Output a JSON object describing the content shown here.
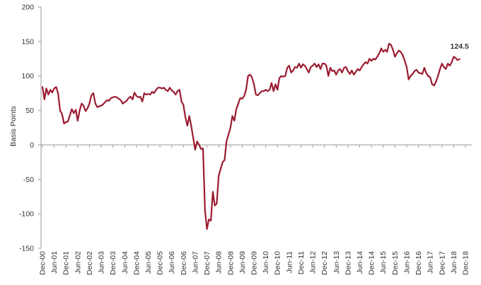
{
  "chart_data": {
    "type": "line",
    "ylabel": "Basis Points",
    "ylim": [
      -150,
      200
    ],
    "yticks": [
      -150,
      -100,
      -50,
      0,
      50,
      100,
      150,
      200
    ],
    "xticks": [
      "Dec-00",
      "Jun-01",
      "Dec-01",
      "Jun-02",
      "Dec-02",
      "Jun-03",
      "Dec-03",
      "Jun-04",
      "Dec-04",
      "Jun-05",
      "Dec-05",
      "Jun-06",
      "Dec-06",
      "Jun-07",
      "Dec-07",
      "Jun-08",
      "Dec-08",
      "Jun-09",
      "Dec-09",
      "Jun-10",
      "Dec-10",
      "Jun-11",
      "Dec-11",
      "Jun-12",
      "Dec-12",
      "Jun-13",
      "Dec-13",
      "Jun-14",
      "Dec-14",
      "Jun-15",
      "Dec-15",
      "Jun-16",
      "Dec-16",
      "Jun-17",
      "Dec-17",
      "Jun-18",
      "Dec-18"
    ],
    "grid": false,
    "end_label": "124.5",
    "color": "#9b1b30",
    "series": [
      {
        "values": [
          {
            "x": "Dec-00",
            "y": 84
          },
          {
            "x": "Jan-01",
            "y": 66
          },
          {
            "x": "Feb-01",
            "y": 82
          },
          {
            "x": "Mar-01",
            "y": 73
          },
          {
            "x": "Apr-01",
            "y": 80
          },
          {
            "x": "May-01",
            "y": 76
          },
          {
            "x": "Jun-01",
            "y": 82
          },
          {
            "x": "Jul-01",
            "y": 84
          },
          {
            "x": "Aug-01",
            "y": 75
          },
          {
            "x": "Sep-01",
            "y": 50
          },
          {
            "x": "Oct-01",
            "y": 45
          },
          {
            "x": "Nov-01",
            "y": 31
          },
          {
            "x": "Dec-01",
            "y": 33
          },
          {
            "x": "Jan-02",
            "y": 34
          },
          {
            "x": "Feb-02",
            "y": 43
          },
          {
            "x": "Mar-02",
            "y": 52
          },
          {
            "x": "Apr-02",
            "y": 46
          },
          {
            "x": "May-02",
            "y": 51
          },
          {
            "x": "Jun-02",
            "y": 35
          },
          {
            "x": "Jul-02",
            "y": 50
          },
          {
            "x": "Aug-02",
            "y": 60
          },
          {
            "x": "Sep-02",
            "y": 57
          },
          {
            "x": "Oct-02",
            "y": 49
          },
          {
            "x": "Nov-02",
            "y": 53
          },
          {
            "x": "Dec-02",
            "y": 60
          },
          {
            "x": "Jan-03",
            "y": 72
          },
          {
            "x": "Feb-03",
            "y": 75
          },
          {
            "x": "Mar-03",
            "y": 60
          },
          {
            "x": "Apr-03",
            "y": 55
          },
          {
            "x": "May-03",
            "y": 56
          },
          {
            "x": "Jun-03",
            "y": 57
          },
          {
            "x": "Jul-03",
            "y": 59
          },
          {
            "x": "Aug-03",
            "y": 62
          },
          {
            "x": "Sep-03",
            "y": 65
          },
          {
            "x": "Oct-03",
            "y": 64
          },
          {
            "x": "Nov-03",
            "y": 68
          },
          {
            "x": "Dec-03",
            "y": 69
          },
          {
            "x": "Jan-04",
            "y": 70
          },
          {
            "x": "Feb-04",
            "y": 69
          },
          {
            "x": "Mar-04",
            "y": 67
          },
          {
            "x": "Apr-04",
            "y": 65
          },
          {
            "x": "May-04",
            "y": 60
          },
          {
            "x": "Jun-04",
            "y": 62
          },
          {
            "x": "Jul-04",
            "y": 64
          },
          {
            "x": "Aug-04",
            "y": 68
          },
          {
            "x": "Sep-04",
            "y": 70
          },
          {
            "x": "Oct-04",
            "y": 66
          },
          {
            "x": "Nov-04",
            "y": 76
          },
          {
            "x": "Dec-04",
            "y": 71
          },
          {
            "x": "Jan-05",
            "y": 69
          },
          {
            "x": "Feb-05",
            "y": 70
          },
          {
            "x": "Mar-05",
            "y": 63
          },
          {
            "x": "Apr-05",
            "y": 75
          },
          {
            "x": "May-05",
            "y": 73
          },
          {
            "x": "Jun-05",
            "y": 74
          },
          {
            "x": "Jul-05",
            "y": 73
          },
          {
            "x": "Aug-05",
            "y": 77
          },
          {
            "x": "Sep-05",
            "y": 75
          },
          {
            "x": "Oct-05",
            "y": 80
          },
          {
            "x": "Nov-05",
            "y": 83
          },
          {
            "x": "Dec-05",
            "y": 83
          },
          {
            "x": "Jan-06",
            "y": 82
          },
          {
            "x": "Feb-06",
            "y": 83
          },
          {
            "x": "Mar-06",
            "y": 80
          },
          {
            "x": "Apr-06",
            "y": 78
          },
          {
            "x": "May-06",
            "y": 83
          },
          {
            "x": "Jun-06",
            "y": 79
          },
          {
            "x": "Jul-06",
            "y": 77
          },
          {
            "x": "Aug-06",
            "y": 73
          },
          {
            "x": "Sep-06",
            "y": 78
          },
          {
            "x": "Oct-06",
            "y": 80
          },
          {
            "x": "Nov-06",
            "y": 63
          },
          {
            "x": "Dec-06",
            "y": 58
          },
          {
            "x": "Jan-07",
            "y": 40
          },
          {
            "x": "Feb-07",
            "y": 28
          },
          {
            "x": "Mar-07",
            "y": 42
          },
          {
            "x": "Apr-07",
            "y": 27
          },
          {
            "x": "May-07",
            "y": 10
          },
          {
            "x": "Jun-07",
            "y": -7
          },
          {
            "x": "Jul-07",
            "y": 5
          },
          {
            "x": "Aug-07",
            "y": 0
          },
          {
            "x": "Sep-07",
            "y": -6
          },
          {
            "x": "Oct-07",
            "y": -5
          },
          {
            "x": "Nov-07",
            "y": -95
          },
          {
            "x": "Dec-07",
            "y": -122
          },
          {
            "x": "Jan-08",
            "y": -108
          },
          {
            "x": "Feb-08",
            "y": -110
          },
          {
            "x": "Mar-08",
            "y": -68
          },
          {
            "x": "Apr-08",
            "y": -88
          },
          {
            "x": "May-08",
            "y": -85
          },
          {
            "x": "Jun-08",
            "y": -45
          },
          {
            "x": "Jul-08",
            "y": -35
          },
          {
            "x": "Aug-08",
            "y": -25
          },
          {
            "x": "Sep-08",
            "y": -22
          },
          {
            "x": "Oct-08",
            "y": 5
          },
          {
            "x": "Nov-08",
            "y": 15
          },
          {
            "x": "Dec-08",
            "y": 25
          },
          {
            "x": "Jan-09",
            "y": 42
          },
          {
            "x": "Feb-09",
            "y": 35
          },
          {
            "x": "Mar-09",
            "y": 52
          },
          {
            "x": "Apr-09",
            "y": 60
          },
          {
            "x": "May-09",
            "y": 68
          },
          {
            "x": "Jun-09",
            "y": 67
          },
          {
            "x": "Jul-09",
            "y": 71
          },
          {
            "x": "Aug-09",
            "y": 80
          },
          {
            "x": "Sep-09",
            "y": 100
          },
          {
            "x": "Oct-09",
            "y": 102
          },
          {
            "x": "Nov-09",
            "y": 98
          },
          {
            "x": "Dec-09",
            "y": 88
          },
          {
            "x": "Jan-10",
            "y": 73
          },
          {
            "x": "Feb-10",
            "y": 72
          },
          {
            "x": "Mar-10",
            "y": 75
          },
          {
            "x": "Apr-10",
            "y": 78
          },
          {
            "x": "May-10",
            "y": 78
          },
          {
            "x": "Jun-10",
            "y": 80
          },
          {
            "x": "Jul-10",
            "y": 78
          },
          {
            "x": "Aug-10",
            "y": 80
          },
          {
            "x": "Sep-10",
            "y": 90
          },
          {
            "x": "Oct-10",
            "y": 78
          },
          {
            "x": "Nov-10",
            "y": 88
          },
          {
            "x": "Dec-10",
            "y": 80
          },
          {
            "x": "Jan-11",
            "y": 97
          },
          {
            "x": "Feb-11",
            "y": 100
          },
          {
            "x": "Mar-11",
            "y": 99
          },
          {
            "x": "Apr-11",
            "y": 100
          },
          {
            "x": "May-11",
            "y": 112
          },
          {
            "x": "Jun-11",
            "y": 115
          },
          {
            "x": "Jul-11",
            "y": 105
          },
          {
            "x": "Aug-11",
            "y": 108
          },
          {
            "x": "Sep-11",
            "y": 113
          },
          {
            "x": "Oct-11",
            "y": 112
          },
          {
            "x": "Nov-11",
            "y": 118
          },
          {
            "x": "Dec-11",
            "y": 112
          },
          {
            "x": "Jan-12",
            "y": 117
          },
          {
            "x": "Feb-12",
            "y": 115
          },
          {
            "x": "Mar-12",
            "y": 110
          },
          {
            "x": "Apr-12",
            "y": 105
          },
          {
            "x": "May-12",
            "y": 113
          },
          {
            "x": "Jun-12",
            "y": 115
          },
          {
            "x": "Jul-12",
            "y": 118
          },
          {
            "x": "Aug-12",
            "y": 113
          },
          {
            "x": "Sep-12",
            "y": 117
          },
          {
            "x": "Oct-12",
            "y": 110
          },
          {
            "x": "Nov-12",
            "y": 118
          },
          {
            "x": "Dec-12",
            "y": 118
          },
          {
            "x": "Jan-13",
            "y": 115
          },
          {
            "x": "Feb-13",
            "y": 100
          },
          {
            "x": "Mar-13",
            "y": 112
          },
          {
            "x": "Apr-13",
            "y": 107
          },
          {
            "x": "May-13",
            "y": 108
          },
          {
            "x": "Jun-13",
            "y": 102
          },
          {
            "x": "Jul-13",
            "y": 108
          },
          {
            "x": "Aug-13",
            "y": 110
          },
          {
            "x": "Sep-13",
            "y": 105
          },
          {
            "x": "Oct-13",
            "y": 112
          },
          {
            "x": "Nov-13",
            "y": 113
          },
          {
            "x": "Dec-13",
            "y": 107
          },
          {
            "x": "Jan-14",
            "y": 103
          },
          {
            "x": "Feb-14",
            "y": 108
          },
          {
            "x": "Mar-14",
            "y": 102
          },
          {
            "x": "Apr-14",
            "y": 106
          },
          {
            "x": "May-14",
            "y": 110
          },
          {
            "x": "Jun-14",
            "y": 108
          },
          {
            "x": "Jul-14",
            "y": 113
          },
          {
            "x": "Aug-14",
            "y": 117
          },
          {
            "x": "Sep-14",
            "y": 120
          },
          {
            "x": "Oct-14",
            "y": 118
          },
          {
            "x": "Nov-14",
            "y": 125
          },
          {
            "x": "Dec-14",
            "y": 122
          },
          {
            "x": "Jan-15",
            "y": 125
          },
          {
            "x": "Feb-15",
            "y": 124
          },
          {
            "x": "Mar-15",
            "y": 128
          },
          {
            "x": "Apr-15",
            "y": 133
          },
          {
            "x": "May-15",
            "y": 140
          },
          {
            "x": "Jun-15",
            "y": 135
          },
          {
            "x": "Jul-15",
            "y": 138
          },
          {
            "x": "Aug-15",
            "y": 135
          },
          {
            "x": "Sep-15",
            "y": 147
          },
          {
            "x": "Oct-15",
            "y": 145
          },
          {
            "x": "Nov-15",
            "y": 138
          },
          {
            "x": "Dec-15",
            "y": 128
          },
          {
            "x": "Jan-16",
            "y": 133
          },
          {
            "x": "Feb-16",
            "y": 137
          },
          {
            "x": "Mar-16",
            "y": 135
          },
          {
            "x": "Apr-16",
            "y": 130
          },
          {
            "x": "May-16",
            "y": 122
          },
          {
            "x": "Jun-16",
            "y": 113
          },
          {
            "x": "Jul-16",
            "y": 95
          },
          {
            "x": "Aug-16",
            "y": 100
          },
          {
            "x": "Sep-16",
            "y": 103
          },
          {
            "x": "Oct-16",
            "y": 107
          },
          {
            "x": "Nov-16",
            "y": 109
          },
          {
            "x": "Dec-16",
            "y": 105
          },
          {
            "x": "Jan-17",
            "y": 104
          },
          {
            "x": "Feb-17",
            "y": 103
          },
          {
            "x": "Mar-17",
            "y": 112
          },
          {
            "x": "Apr-17",
            "y": 104
          },
          {
            "x": "May-17",
            "y": 100
          },
          {
            "x": "Jun-17",
            "y": 98
          },
          {
            "x": "Jul-17",
            "y": 88
          },
          {
            "x": "Aug-17",
            "y": 86
          },
          {
            "x": "Sep-17",
            "y": 92
          },
          {
            "x": "Oct-17",
            "y": 100
          },
          {
            "x": "Nov-17",
            "y": 110
          },
          {
            "x": "Dec-17",
            "y": 118
          },
          {
            "x": "Jan-18",
            "y": 113
          },
          {
            "x": "Feb-18",
            "y": 110
          },
          {
            "x": "Mar-18",
            "y": 118
          },
          {
            "x": "Apr-18",
            "y": 115
          },
          {
            "x": "May-18",
            "y": 120
          },
          {
            "x": "Jun-18",
            "y": 128
          },
          {
            "x": "Jul-18",
            "y": 126
          },
          {
            "x": "Aug-18",
            "y": 123
          },
          {
            "x": "Sep-18",
            "y": 124.5
          }
        ]
      }
    ]
  }
}
